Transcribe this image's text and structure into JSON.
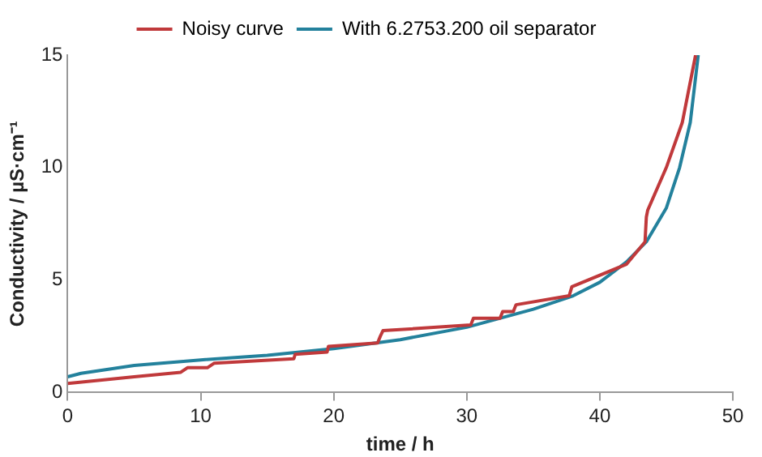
{
  "chart_data": {
    "type": "line",
    "xlabel": "time / h",
    "ylabel": "Conductivity / µS·cm⁻¹",
    "xlim": [
      0,
      50
    ],
    "xticks": [
      0,
      10,
      20,
      30,
      40,
      50
    ],
    "ylim": [
      0,
      15
    ],
    "yticks": [
      0,
      5,
      10,
      15
    ],
    "grid": false,
    "legend": "top",
    "marker": "none",
    "series": [
      {
        "name": "Noisy curve",
        "color": "#c0393b",
        "x": [
          0,
          5,
          8.5,
          9,
          10.5,
          11,
          17,
          17.1,
          19.5,
          19.6,
          23.3,
          23.5,
          23.7,
          30.3,
          30.5,
          32.5,
          32.7,
          33.5,
          33.7,
          37.7,
          37.9,
          42,
          43.4,
          43.5,
          43.6,
          45,
          46.2,
          47.2
        ],
        "values": [
          0.4,
          0.7,
          0.9,
          1.1,
          1.1,
          1.3,
          1.5,
          1.7,
          1.8,
          2.05,
          2.2,
          2.5,
          2.75,
          3,
          3.3,
          3.3,
          3.6,
          3.6,
          3.9,
          4.3,
          4.7,
          5.7,
          6.7,
          7.8,
          8.1,
          10,
          12,
          15
        ]
      },
      {
        "name": "With 6.2753.200 oil separator",
        "color": "#23819c",
        "x": [
          0,
          1,
          5,
          10,
          15,
          20,
          25,
          30,
          35,
          38,
          40,
          42,
          43.5,
          45,
          46,
          46.8,
          47.4
        ],
        "values": [
          0.7,
          0.85,
          1.2,
          1.45,
          1.65,
          1.95,
          2.35,
          2.9,
          3.7,
          4.3,
          4.9,
          5.8,
          6.7,
          8.2,
          10,
          12,
          15
        ]
      }
    ]
  }
}
